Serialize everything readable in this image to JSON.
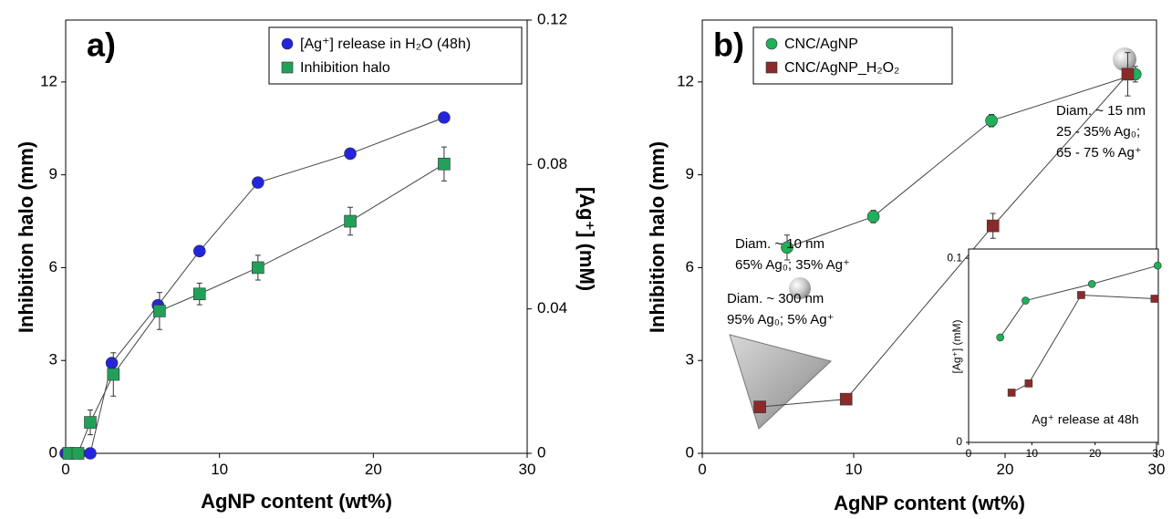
{
  "chart_data": [
    {
      "type": "line",
      "title": "a)",
      "xlabel": "AgNP content (wt%)",
      "ylabel": "Inhibition halo (mm)",
      "y2label": "[Ag⁺] (mM)",
      "xlim": [
        0,
        30
      ],
      "xticks": [
        0,
        10,
        20,
        30
      ],
      "ylim": [
        0,
        14
      ],
      "yticks": [
        0,
        3,
        6,
        9,
        12
      ],
      "y2lim": [
        0,
        0.12
      ],
      "y2ticks": [
        0,
        0.04,
        0.08,
        0.12
      ],
      "legend": "upper right",
      "series": [
        {
          "name": "[Ag⁺] release in H₂O (48h)",
          "color": "#2424e0",
          "marker": "circle",
          "axis": "y2",
          "x": [
            0,
            0.3,
            0.9,
            1.6,
            3,
            6,
            8.7,
            12.5,
            18.5,
            24.6
          ],
          "values": [
            0,
            0,
            0,
            0,
            0.025,
            0.041,
            0.056,
            0.075,
            0.083,
            0.093
          ]
        },
        {
          "name": "Inhibition halo",
          "color": "#22a05a",
          "marker": "square",
          "x": [
            0.2,
            0.8,
            1.6,
            3.1,
            6.1,
            8.7,
            12.5,
            18.5,
            24.6
          ],
          "values": [
            0,
            0,
            1.0,
            2.55,
            4.6,
            5.15,
            6.0,
            7.5,
            9.35
          ],
          "error": [
            null,
            null,
            0.4,
            0.7,
            0.6,
            0.35,
            0.4,
            0.45,
            0.55
          ]
        }
      ]
    },
    {
      "type": "line",
      "title": "b)",
      "xlabel": "AgNP content (wt%)",
      "ylabel": "Inhibition halo (mm)",
      "xlim": [
        0,
        30
      ],
      "xticks": [
        0,
        10,
        20,
        30
      ],
      "ylim": [
        0,
        14
      ],
      "yticks": [
        0,
        3,
        6,
        9,
        12
      ],
      "legend": "upper left",
      "annotations": [
        [
          "Diam. ~ 10 nm",
          "65% Ag₀; 35% Ag⁺"
        ],
        [
          "Diam. ~ 300 nm",
          "95% Ag₀; 5% Ag⁺"
        ],
        [
          "Diam. ~ 15 nm",
          "25 - 35% Ag₀;",
          "65 - 75 % Ag⁺"
        ]
      ],
      "series": [
        {
          "name": "CNC/AgNP",
          "color": "#1fb05a",
          "marker": "circle",
          "x": [
            5.6,
            11.3,
            19.1,
            28.6
          ],
          "values": [
            6.65,
            7.65,
            10.75,
            12.25
          ],
          "error": [
            0.4,
            0.2,
            0.2,
            0.25
          ]
        },
        {
          "name": "CNC/AgNP_H₂O₂",
          "color": "#8b2a2a",
          "marker": "square",
          "x": [
            3.8,
            9.5,
            19.2,
            28.1
          ],
          "values": [
            1.5,
            1.75,
            7.35,
            12.25
          ],
          "error": [
            null,
            null,
            0.4,
            0.7
          ]
        }
      ]
    },
    {
      "type": "line",
      "title": "Ag⁺ release at 48h",
      "ylabel": "[Ag⁺] (mM)",
      "xlim": [
        0,
        30
      ],
      "xticks": [
        0,
        10,
        20,
        30
      ],
      "ylim": [
        0,
        0.105
      ],
      "yticks": [
        0,
        0.1
      ],
      "series": [
        {
          "color": "#1fb05a",
          "marker": "circle",
          "x": [
            5,
            9,
            19.5,
            29.9
          ],
          "values": [
            0.057,
            0.077,
            0.086,
            0.096
          ]
        },
        {
          "color": "#8b2a2a",
          "marker": "square",
          "x": [
            6.8,
            9.5,
            17.8,
            29.4
          ],
          "values": [
            0.027,
            0.032,
            0.08,
            0.078
          ]
        }
      ]
    }
  ]
}
